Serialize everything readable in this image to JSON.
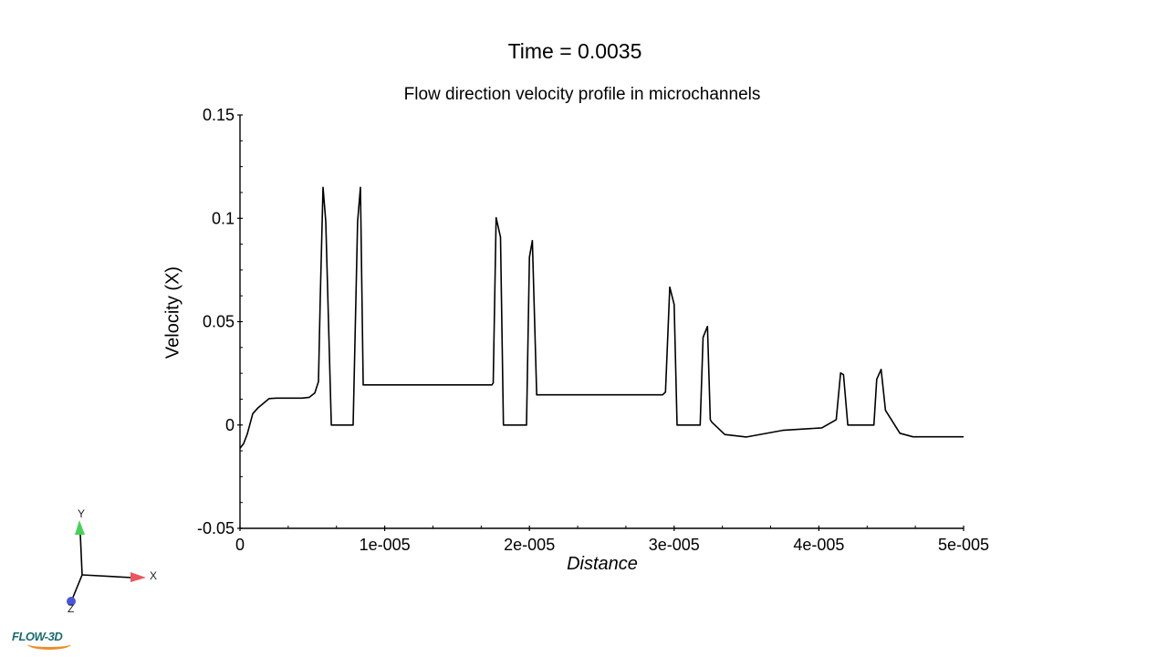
{
  "header": {
    "time_label": "Time = 0.0035"
  },
  "chart_data": {
    "type": "line",
    "title": "Flow direction velocity profile in microchannels",
    "supertitle": "Time = 0.0035",
    "xlabel": "Distance",
    "ylabel": "Velocity (X)",
    "xlim": [
      0,
      5e-05
    ],
    "ylim": [
      -0.05,
      0.15
    ],
    "grid": false,
    "legend": null,
    "x_ticks": [
      "0",
      "1e-005",
      "2e-005",
      "3e-005",
      "4e-005",
      "5e-005"
    ],
    "y_ticks": [
      "-0.05",
      "0",
      "0.05",
      "0.1",
      "0.15"
    ],
    "series": [
      {
        "name": "Velocity (X)",
        "color": "#000000",
        "x": [
          0,
          2.5e-07,
          5e-07,
          8.8e-07,
          1.26e-06,
          1.64e-06,
          2.02e-06,
          2.52e-06,
          3.53e-06,
          4.29e-06,
          4.79e-06,
          5.17e-06,
          5.42e-06,
          5.55e-06,
          5.74e-06,
          5.93e-06,
          6.31e-06,
          6.31e-06,
          7.82e-06,
          7.82e-06,
          8.13e-06,
          8.32e-06,
          8.51e-06,
          8.51e-06,
          1.1e-05,
          1.45e-05,
          1.74e-05,
          1.75e-05,
          1.77e-05,
          1.8e-05,
          1.82e-05,
          1.82e-05,
          1.98e-05,
          2e-05,
          2.02e-05,
          2.05e-05,
          2.05e-05,
          2.5e-05,
          2.92e-05,
          2.94e-05,
          2.97e-05,
          3e-05,
          3.02e-05,
          3.02e-05,
          3.18e-05,
          3.2e-05,
          3.23e-05,
          3.25e-05,
          3.26e-05,
          3.35e-05,
          3.5e-05,
          3.75e-05,
          4.02e-05,
          4.12e-05,
          4.15e-05,
          4.17e-05,
          4.2e-05,
          4.22e-05,
          4.38e-05,
          4.4e-05,
          4.43e-05,
          4.46e-05,
          4.56e-05,
          4.65e-05,
          5e-05
        ],
        "y": [
          -0.0113,
          -0.009,
          -0.0045,
          0.0055,
          0.0084,
          0.0106,
          0.0128,
          0.013,
          0.013,
          0.013,
          0.0134,
          0.0155,
          0.021,
          0.062,
          0.115,
          0.0985,
          0.0,
          0.0,
          0.0,
          0.0,
          0.0985,
          0.115,
          0.0203,
          0.0194,
          0.0194,
          0.0194,
          0.0194,
          0.0203,
          0.1003,
          0.0909,
          0.0,
          0.0,
          0.0,
          0.0812,
          0.0892,
          0.0155,
          0.0146,
          0.0146,
          0.0146,
          0.0159,
          0.0667,
          0.0583,
          0.0,
          0.0,
          0.0,
          0.0424,
          0.0477,
          0.0026,
          0.0014,
          -0.0046,
          -0.0058,
          -0.0026,
          -0.0014,
          0.0026,
          0.0252,
          0.0243,
          0.0,
          0.0,
          0.0,
          0.0221,
          0.0269,
          0.0071,
          -0.004,
          -0.0057,
          -0.0057
        ]
      }
    ]
  },
  "axes_triad": {
    "x_label": "X",
    "y_label": "Y",
    "z_label": "Z",
    "x_color": "#e8595f",
    "y_color": "#49d05a",
    "z_color": "#4a56d8"
  },
  "logo": {
    "text": "FLOW-3D"
  }
}
